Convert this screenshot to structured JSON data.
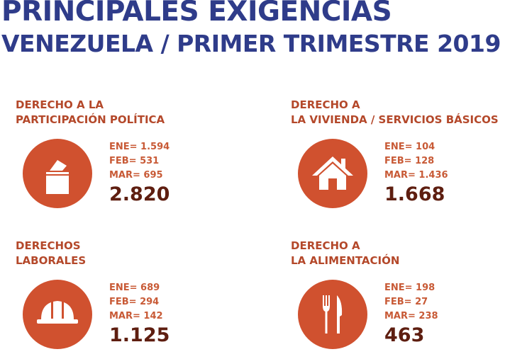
{
  "title_line1": "PRINCIPALES EXIGENCIAS",
  "title_line2": "VENEZUELA / PRIMER TRIMESTRE 2019",
  "colors": {
    "title": "#2f3c8a",
    "heading": "#b4482a",
    "circle": "#d0512f",
    "stat": "#c85a36",
    "total": "#5e1e10"
  },
  "cards": [
    {
      "heading_line1": "DERECHO A LA",
      "heading_line2": "PARTICIPACIÓN POLÍTICA",
      "icon": "ballot-box-icon",
      "ene": "ENE= 1.594",
      "feb": "FEB= 531",
      "mar": "MAR= 695",
      "total": "2.820"
    },
    {
      "heading_line1": "DERECHO A",
      "heading_line2": "LA VIVIENDA / SERVICIOS BÁSICOS",
      "icon": "house-icon",
      "ene": "ENE= 104",
      "feb": "FEB= 128",
      "mar": "MAR= 1.436",
      "total": "1.668"
    },
    {
      "heading_line1": "DERECHOS",
      "heading_line2": "LABORALES",
      "icon": "hard-hat-icon",
      "ene": "ENE= 689",
      "feb": "FEB= 294",
      "mar": "MAR= 142",
      "total": "1.125"
    },
    {
      "heading_line1": "DERECHO A",
      "heading_line2": "LA ALIMENTACIÓN",
      "icon": "fork-knife-icon",
      "ene": "ENE= 198",
      "feb": "FEB= 27",
      "mar": "MAR= 238",
      "total": "463"
    }
  ]
}
